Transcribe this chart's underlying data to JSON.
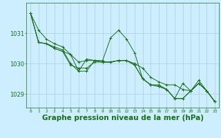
{
  "background_color": "#cceeff",
  "grid_color": "#aaccdd",
  "line_color": "#1a6b1a",
  "marker_color": "#1a6b1a",
  "xlabel": "Graphe pression niveau de la mer (hPa)",
  "xlabel_fontsize": 7.5,
  "xlim": [
    -0.5,
    23.5
  ],
  "ylim": [
    1028.55,
    1032.0
  ],
  "yticks": [
    1029,
    1030,
    1031
  ],
  "xticks": [
    0,
    1,
    2,
    3,
    4,
    5,
    6,
    7,
    8,
    9,
    10,
    11,
    12,
    13,
    14,
    15,
    16,
    17,
    18,
    19,
    20,
    21,
    22,
    23
  ],
  "series": [
    [
      1031.65,
      1031.1,
      1030.8,
      1030.65,
      1030.55,
      1030.3,
      1030.05,
      1030.1,
      1030.1,
      1030.05,
      1030.05,
      1030.1,
      1030.1,
      1030.0,
      1029.85,
      1029.55,
      1029.4,
      1029.3,
      1029.3,
      1029.15,
      1029.1,
      1029.35,
      1029.1,
      1028.75
    ],
    [
      1031.65,
      1030.7,
      1030.65,
      1030.55,
      1030.45,
      1030.0,
      1029.75,
      1029.75,
      1030.1,
      1030.1,
      1030.85,
      1031.1,
      1030.8,
      1030.35,
      1029.5,
      1029.3,
      1029.25,
      1029.15,
      1028.85,
      1029.35,
      1029.1,
      1029.45,
      1029.1,
      1028.75
    ],
    [
      1031.65,
      1030.7,
      1030.65,
      1030.5,
      1030.4,
      1030.3,
      1029.75,
      1030.15,
      1030.1,
      1030.05,
      1030.05,
      1030.1,
      1030.1,
      1029.95,
      1029.5,
      1029.3,
      1029.3,
      1029.15,
      1028.85,
      1028.85,
      1029.1,
      1029.35,
      1029.1,
      1028.75
    ],
    [
      1031.65,
      1030.7,
      1030.65,
      1030.5,
      1030.4,
      1029.95,
      1029.85,
      1029.85,
      1030.05,
      1030.05,
      1030.05,
      1030.1,
      1030.1,
      1029.95,
      1029.5,
      1029.3,
      1029.25,
      1029.15,
      1028.85,
      1028.85,
      1029.1,
      1029.35,
      1029.1,
      1028.75
    ]
  ]
}
